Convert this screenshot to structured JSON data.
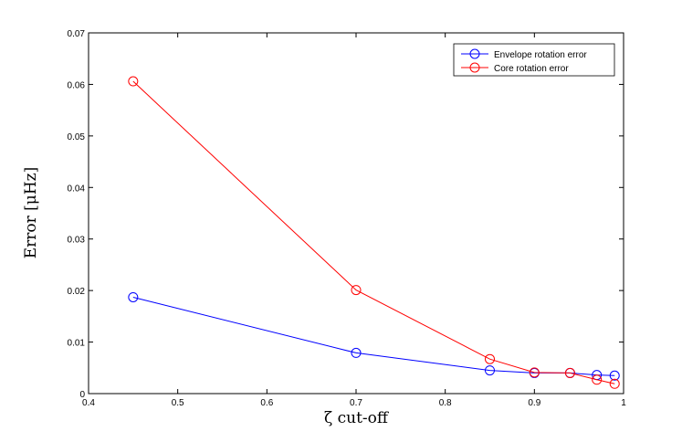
{
  "chart_data": {
    "type": "line",
    "xlabel": "ζ cut-off",
    "ylabel": "Error [μHz]",
    "xlim": [
      0.4,
      1.0
    ],
    "ylim": [
      0,
      0.07
    ],
    "x_ticks": [
      "0.4",
      "0.5",
      "0.6",
      "0.7",
      "0.8",
      "0.9",
      "1"
    ],
    "y_ticks": [
      "0",
      "0.01",
      "0.02",
      "0.03",
      "0.04",
      "0.05",
      "0.06",
      "0.07"
    ],
    "grid": false,
    "legend_position": "top-right",
    "series": [
      {
        "name": "Envelope rotation error",
        "color": "#0000ff",
        "marker": "circle",
        "x": [
          0.45,
          0.7,
          0.85,
          0.9,
          0.94,
          0.97,
          0.99
        ],
        "y": [
          0.0187,
          0.0079,
          0.0045,
          0.004,
          0.004,
          0.0036,
          0.0035
        ]
      },
      {
        "name": "Core rotation error",
        "color": "#ff0000",
        "marker": "circle",
        "x": [
          0.45,
          0.7,
          0.85,
          0.9,
          0.94,
          0.97,
          0.99
        ],
        "y": [
          0.0606,
          0.0201,
          0.0067,
          0.0041,
          0.004,
          0.0027,
          0.0019
        ]
      }
    ]
  }
}
